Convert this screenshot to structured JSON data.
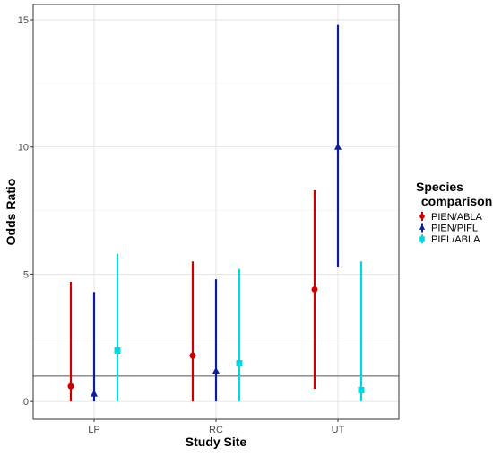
{
  "chart_data": {
    "type": "scatter",
    "subtype": "point-range (odds ratio with confidence intervals)",
    "xlabel": "Study Site",
    "ylabel": "Odds Ratio",
    "categories": [
      "LP",
      "RC",
      "UT"
    ],
    "ylim": [
      -0.7,
      15.6
    ],
    "yticks": [
      0,
      5,
      10,
      15
    ],
    "reference_line": 1,
    "grid": true,
    "legend": {
      "title_line1": "Species",
      "title_line2": " comparison",
      "position": "right"
    },
    "series": [
      {
        "name": "PIEN/ABLA",
        "color": "#cc0000",
        "marker": "circle",
        "points": [
          {
            "x": "LP",
            "y": 0.6,
            "lower": 0.0,
            "upper": 4.7
          },
          {
            "x": "RC",
            "y": 1.8,
            "lower": 0.0,
            "upper": 5.5
          },
          {
            "x": "UT",
            "y": 4.4,
            "lower": 0.5,
            "upper": 8.3
          }
        ]
      },
      {
        "name": "PIEN/PIFL",
        "color": "#0b1e9e",
        "marker": "triangle",
        "points": [
          {
            "x": "LP",
            "y": 0.3,
            "lower": 0.0,
            "upper": 4.3
          },
          {
            "x": "RC",
            "y": 1.2,
            "lower": 0.0,
            "upper": 4.8
          },
          {
            "x": "UT",
            "y": 10.0,
            "lower": 5.3,
            "upper": 14.8
          }
        ]
      },
      {
        "name": "PIFL/ABLA",
        "color": "#00d8e0",
        "marker": "square",
        "points": [
          {
            "x": "LP",
            "y": 2.0,
            "lower": 0.0,
            "upper": 5.8
          },
          {
            "x": "RC",
            "y": 1.5,
            "lower": 0.0,
            "upper": 5.2
          },
          {
            "x": "UT",
            "y": 0.45,
            "lower": 0.0,
            "upper": 5.5
          }
        ]
      }
    ]
  }
}
